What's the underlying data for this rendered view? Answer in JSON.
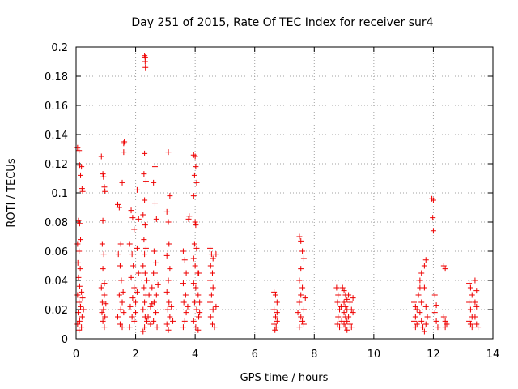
{
  "chart_data": {
    "type": "scatter",
    "title": "Day 251 of 2015, Rate Of TEC Index for receiver sur4",
    "xlabel": "GPS time / hours",
    "ylabel": "ROTI / TECUs",
    "xlim": [
      0,
      14
    ],
    "ylim": [
      0,
      0.2
    ],
    "x_ticks": [
      "0",
      "2",
      "4",
      "6",
      "8",
      "10",
      "12",
      "14"
    ],
    "y_ticks": [
      "0",
      "0.02",
      "0.04",
      "0.06",
      "0.08",
      "0.1",
      "0.12",
      "0.14",
      "0.16",
      "0.18",
      "0.2"
    ],
    "grid": true,
    "marker": "plus",
    "color": "#ee0000",
    "series": [
      {
        "values": [
          [
            0.05,
            0.131
          ],
          [
            0.1,
            0.129
          ],
          [
            0.12,
            0.119
          ],
          [
            0.15,
            0.112
          ],
          [
            0.18,
            0.118
          ],
          [
            0.2,
            0.103
          ],
          [
            0.22,
            0.101
          ],
          [
            0.08,
            0.081
          ],
          [
            0.12,
            0.079
          ],
          [
            0.15,
            0.068
          ],
          [
            0.05,
            0.065
          ],
          [
            0.1,
            0.06
          ],
          [
            0.06,
            0.052
          ],
          [
            0.14,
            0.048
          ],
          [
            0.08,
            0.042
          ],
          [
            0.12,
            0.036
          ],
          [
            0.05,
            0.03
          ],
          [
            0.1,
            0.025
          ],
          [
            0.15,
            0.022
          ],
          [
            0.07,
            0.018
          ],
          [
            0.2,
            0.015
          ],
          [
            0.12,
            0.012
          ],
          [
            0.05,
            0.01
          ],
          [
            0.18,
            0.008
          ],
          [
            0.1,
            0.006
          ],
          [
            0.22,
            0.028
          ],
          [
            0.25,
            0.02
          ],
          [
            0.18,
            0.032
          ],
          [
            0.85,
            0.125
          ],
          [
            0.9,
            0.113
          ],
          [
            0.92,
            0.111
          ],
          [
            0.95,
            0.104
          ],
          [
            0.97,
            0.101
          ],
          [
            0.9,
            0.081
          ],
          [
            0.88,
            0.065
          ],
          [
            0.93,
            0.058
          ],
          [
            0.9,
            0.048
          ],
          [
            0.85,
            0.035
          ],
          [
            0.95,
            0.03
          ],
          [
            0.88,
            0.025
          ],
          [
            0.92,
            0.02
          ],
          [
            0.97,
            0.015
          ],
          [
            0.9,
            0.012
          ],
          [
            0.95,
            0.008
          ],
          [
            1.0,
            0.024
          ],
          [
            0.87,
            0.018
          ],
          [
            0.95,
            0.038
          ],
          [
            1.4,
            0.092
          ],
          [
            1.45,
            0.09
          ],
          [
            1.55,
            0.107
          ],
          [
            1.5,
            0.065
          ],
          [
            1.42,
            0.058
          ],
          [
            1.48,
            0.05
          ],
          [
            1.52,
            0.04
          ],
          [
            1.45,
            0.03
          ],
          [
            1.55,
            0.025
          ],
          [
            1.5,
            0.02
          ],
          [
            1.4,
            0.015
          ],
          [
            1.48,
            0.01
          ],
          [
            1.55,
            0.008
          ],
          [
            1.6,
            0.018
          ],
          [
            1.58,
            0.032
          ],
          [
            1.6,
            0.134
          ],
          [
            1.62,
            0.135
          ],
          [
            1.6,
            0.128
          ],
          [
            1.85,
            0.088
          ],
          [
            1.9,
            0.083
          ],
          [
            1.95,
            0.075
          ],
          [
            1.8,
            0.065
          ],
          [
            1.88,
            0.058
          ],
          [
            1.92,
            0.05
          ],
          [
            1.85,
            0.042
          ],
          [
            1.95,
            0.035
          ],
          [
            1.9,
            0.028
          ],
          [
            1.82,
            0.022
          ],
          [
            1.88,
            0.015
          ],
          [
            1.95,
            0.012
          ],
          [
            1.8,
            0.008
          ],
          [
            2.0,
            0.025
          ],
          [
            2.05,
            0.102
          ],
          [
            2.1,
            0.082
          ],
          [
            2.05,
            0.062
          ],
          [
            2.1,
            0.045
          ],
          [
            2.05,
            0.032
          ],
          [
            2.0,
            0.018
          ],
          [
            2.3,
            0.194
          ],
          [
            2.32,
            0.193
          ],
          [
            2.32,
            0.19
          ],
          [
            2.33,
            0.186
          ],
          [
            2.3,
            0.127
          ],
          [
            2.28,
            0.113
          ],
          [
            2.35,
            0.108
          ],
          [
            2.3,
            0.095
          ],
          [
            2.25,
            0.085
          ],
          [
            2.32,
            0.078
          ],
          [
            2.28,
            0.068
          ],
          [
            2.35,
            0.062
          ],
          [
            2.3,
            0.058
          ],
          [
            2.25,
            0.05
          ],
          [
            2.32,
            0.045
          ],
          [
            2.38,
            0.04
          ],
          [
            2.28,
            0.035
          ],
          [
            2.35,
            0.03
          ],
          [
            2.3,
            0.025
          ],
          [
            2.25,
            0.02
          ],
          [
            2.32,
            0.015
          ],
          [
            2.38,
            0.012
          ],
          [
            2.3,
            0.008
          ],
          [
            2.25,
            0.005
          ],
          [
            2.45,
            0.03
          ],
          [
            2.5,
            0.022
          ],
          [
            2.42,
            0.015
          ],
          [
            2.5,
            0.01
          ],
          [
            2.55,
            0.035
          ],
          [
            2.6,
            0.045
          ],
          [
            2.55,
            0.024
          ],
          [
            2.65,
            0.118
          ],
          [
            2.6,
            0.107
          ],
          [
            2.65,
            0.093
          ],
          [
            2.7,
            0.082
          ],
          [
            2.62,
            0.06
          ],
          [
            2.68,
            0.052
          ],
          [
            2.65,
            0.045
          ],
          [
            2.7,
            0.03
          ],
          [
            2.62,
            0.025
          ],
          [
            2.68,
            0.018
          ],
          [
            2.6,
            0.012
          ],
          [
            2.72,
            0.008
          ],
          [
            2.75,
            0.037
          ],
          [
            3.1,
            0.128
          ],
          [
            3.15,
            0.098
          ],
          [
            3.05,
            0.087
          ],
          [
            3.1,
            0.08
          ],
          [
            3.12,
            0.065
          ],
          [
            3.05,
            0.057
          ],
          [
            3.15,
            0.048
          ],
          [
            3.1,
            0.04
          ],
          [
            3.05,
            0.032
          ],
          [
            3.12,
            0.025
          ],
          [
            3.08,
            0.02
          ],
          [
            3.15,
            0.015
          ],
          [
            3.05,
            0.01
          ],
          [
            3.1,
            0.006
          ],
          [
            3.2,
            0.022
          ],
          [
            3.25,
            0.012
          ],
          [
            3.6,
            0.06
          ],
          [
            3.65,
            0.054
          ],
          [
            3.7,
            0.045
          ],
          [
            3.6,
            0.038
          ],
          [
            3.68,
            0.03
          ],
          [
            3.62,
            0.025
          ],
          [
            3.7,
            0.018
          ],
          [
            3.65,
            0.012
          ],
          [
            3.6,
            0.008
          ],
          [
            3.75,
            0.022
          ],
          [
            3.8,
            0.084
          ],
          [
            3.78,
            0.082
          ],
          [
            3.95,
            0.126
          ],
          [
            4.0,
            0.125
          ],
          [
            4.02,
            0.118
          ],
          [
            3.98,
            0.112
          ],
          [
            4.05,
            0.107
          ],
          [
            3.95,
            0.098
          ],
          [
            4.0,
            0.08
          ],
          [
            4.02,
            0.078
          ],
          [
            3.98,
            0.065
          ],
          [
            4.05,
            0.062
          ],
          [
            3.95,
            0.055
          ],
          [
            4.0,
            0.05
          ],
          [
            4.08,
            0.045
          ],
          [
            3.95,
            0.038
          ],
          [
            4.02,
            0.035
          ],
          [
            4.1,
            0.03
          ],
          [
            3.98,
            0.025
          ],
          [
            4.05,
            0.02
          ],
          [
            4.12,
            0.015
          ],
          [
            3.95,
            0.012
          ],
          [
            4.02,
            0.008
          ],
          [
            4.1,
            0.006
          ],
          [
            4.15,
            0.025
          ],
          [
            4.15,
            0.018
          ],
          [
            4.12,
            0.045
          ],
          [
            4.5,
            0.062
          ],
          [
            4.55,
            0.058
          ],
          [
            4.6,
            0.055
          ],
          [
            4.52,
            0.05
          ],
          [
            4.58,
            0.045
          ],
          [
            4.5,
            0.04
          ],
          [
            4.6,
            0.035
          ],
          [
            4.55,
            0.03
          ],
          [
            4.5,
            0.025
          ],
          [
            4.6,
            0.02
          ],
          [
            4.52,
            0.015
          ],
          [
            4.58,
            0.01
          ],
          [
            4.65,
            0.008
          ],
          [
            4.7,
            0.022
          ],
          [
            4.7,
            0.058
          ],
          [
            6.65,
            0.032
          ],
          [
            6.7,
            0.03
          ],
          [
            6.75,
            0.025
          ],
          [
            6.65,
            0.02
          ],
          [
            6.7,
            0.015
          ],
          [
            6.75,
            0.012
          ],
          [
            6.65,
            0.01
          ],
          [
            6.72,
            0.008
          ],
          [
            6.68,
            0.006
          ],
          [
            6.75,
            0.018
          ],
          [
            7.5,
            0.07
          ],
          [
            7.55,
            0.067
          ],
          [
            7.6,
            0.06
          ],
          [
            7.65,
            0.055
          ],
          [
            7.55,
            0.048
          ],
          [
            7.5,
            0.04
          ],
          [
            7.6,
            0.035
          ],
          [
            7.55,
            0.03
          ],
          [
            7.5,
            0.025
          ],
          [
            7.65,
            0.02
          ],
          [
            7.55,
            0.015
          ],
          [
            7.6,
            0.012
          ],
          [
            7.5,
            0.008
          ],
          [
            7.65,
            0.01
          ],
          [
            7.7,
            0.028
          ],
          [
            7.45,
            0.018
          ],
          [
            8.75,
            0.035
          ],
          [
            8.8,
            0.03
          ],
          [
            8.78,
            0.025
          ],
          [
            8.85,
            0.02
          ],
          [
            8.8,
            0.015
          ],
          [
            8.78,
            0.01
          ],
          [
            8.85,
            0.008
          ],
          [
            8.95,
            0.035
          ],
          [
            9.0,
            0.033
          ],
          [
            9.05,
            0.03
          ],
          [
            9.1,
            0.027
          ],
          [
            9.0,
            0.025
          ],
          [
            9.05,
            0.022
          ],
          [
            9.1,
            0.02
          ],
          [
            9.0,
            0.018
          ],
          [
            9.05,
            0.015
          ],
          [
            9.1,
            0.012
          ],
          [
            9.0,
            0.01
          ],
          [
            9.05,
            0.008
          ],
          [
            9.1,
            0.006
          ],
          [
            9.15,
            0.03
          ],
          [
            9.2,
            0.025
          ],
          [
            9.25,
            0.02
          ],
          [
            9.15,
            0.015
          ],
          [
            9.2,
            0.01
          ],
          [
            9.25,
            0.008
          ],
          [
            9.3,
            0.028
          ],
          [
            9.3,
            0.018
          ],
          [
            8.9,
            0.022
          ],
          [
            8.92,
            0.012
          ],
          [
            11.35,
            0.025
          ],
          [
            11.4,
            0.022
          ],
          [
            11.45,
            0.02
          ],
          [
            11.4,
            0.015
          ],
          [
            11.35,
            0.012
          ],
          [
            11.45,
            0.01
          ],
          [
            11.4,
            0.008
          ],
          [
            11.5,
            0.03
          ],
          [
            11.55,
            0.035
          ],
          [
            11.6,
            0.045
          ],
          [
            11.55,
            0.04
          ],
          [
            11.6,
            0.025
          ],
          [
            11.55,
            0.018
          ],
          [
            11.6,
            0.012
          ],
          [
            11.65,
            0.008
          ],
          [
            11.7,
            0.05
          ],
          [
            11.75,
            0.054
          ],
          [
            11.7,
            0.035
          ],
          [
            11.75,
            0.022
          ],
          [
            11.8,
            0.015
          ],
          [
            11.75,
            0.01
          ],
          [
            11.7,
            0.005
          ],
          [
            11.95,
            0.096
          ],
          [
            12.0,
            0.095
          ],
          [
            11.98,
            0.083
          ],
          [
            12.0,
            0.074
          ],
          [
            12.05,
            0.03
          ],
          [
            12.1,
            0.023
          ],
          [
            12.05,
            0.018
          ],
          [
            12.1,
            0.012
          ],
          [
            12.15,
            0.008
          ],
          [
            12.35,
            0.05
          ],
          [
            12.4,
            0.048
          ],
          [
            12.35,
            0.015
          ],
          [
            12.4,
            0.012
          ],
          [
            12.45,
            0.01
          ],
          [
            12.4,
            0.008
          ],
          [
            13.2,
            0.038
          ],
          [
            13.25,
            0.035
          ],
          [
            13.3,
            0.03
          ],
          [
            13.2,
            0.025
          ],
          [
            13.25,
            0.02
          ],
          [
            13.3,
            0.015
          ],
          [
            13.2,
            0.012
          ],
          [
            13.25,
            0.01
          ],
          [
            13.3,
            0.008
          ],
          [
            13.4,
            0.04
          ],
          [
            13.45,
            0.033
          ],
          [
            13.4,
            0.025
          ],
          [
            13.45,
            0.022
          ],
          [
            13.4,
            0.015
          ],
          [
            13.45,
            0.01
          ],
          [
            13.5,
            0.008
          ]
        ]
      }
    ]
  }
}
